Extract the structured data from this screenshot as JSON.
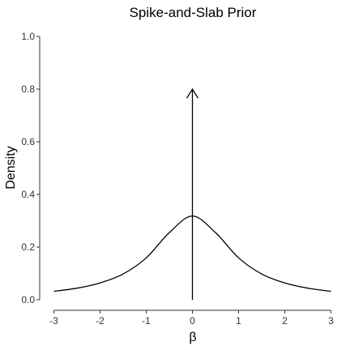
{
  "chart_data": {
    "type": "line",
    "title": "Spike-and-Slab Prior",
    "xlabel": "β",
    "ylabel": "Density",
    "xlim": [
      -3,
      3
    ],
    "ylim": [
      0,
      1.0
    ],
    "x_ticks": [
      -3,
      -2,
      -1,
      0,
      1,
      2,
      3
    ],
    "x_tick_labels": [
      "-3",
      "-2",
      "-1",
      "0",
      "1",
      "2",
      "3"
    ],
    "y_ticks": [
      0.0,
      0.2,
      0.4,
      0.6,
      0.8,
      1.0
    ],
    "y_tick_labels": [
      "0.0",
      "0.2",
      "0.4",
      "0.6",
      "0.8",
      "1.0"
    ],
    "grid": false,
    "slab": {
      "x": [
        -3,
        -2.5,
        -2,
        -1.5,
        -1,
        -0.5,
        0,
        0.5,
        1,
        1.5,
        2,
        2.5,
        3
      ],
      "y": [
        0.032,
        0.044,
        0.064,
        0.098,
        0.159,
        0.255,
        0.318,
        0.255,
        0.159,
        0.098,
        0.064,
        0.044,
        0.032
      ]
    },
    "spike": {
      "x": 0,
      "y_start": 0,
      "y_end": 0.8
    }
  }
}
